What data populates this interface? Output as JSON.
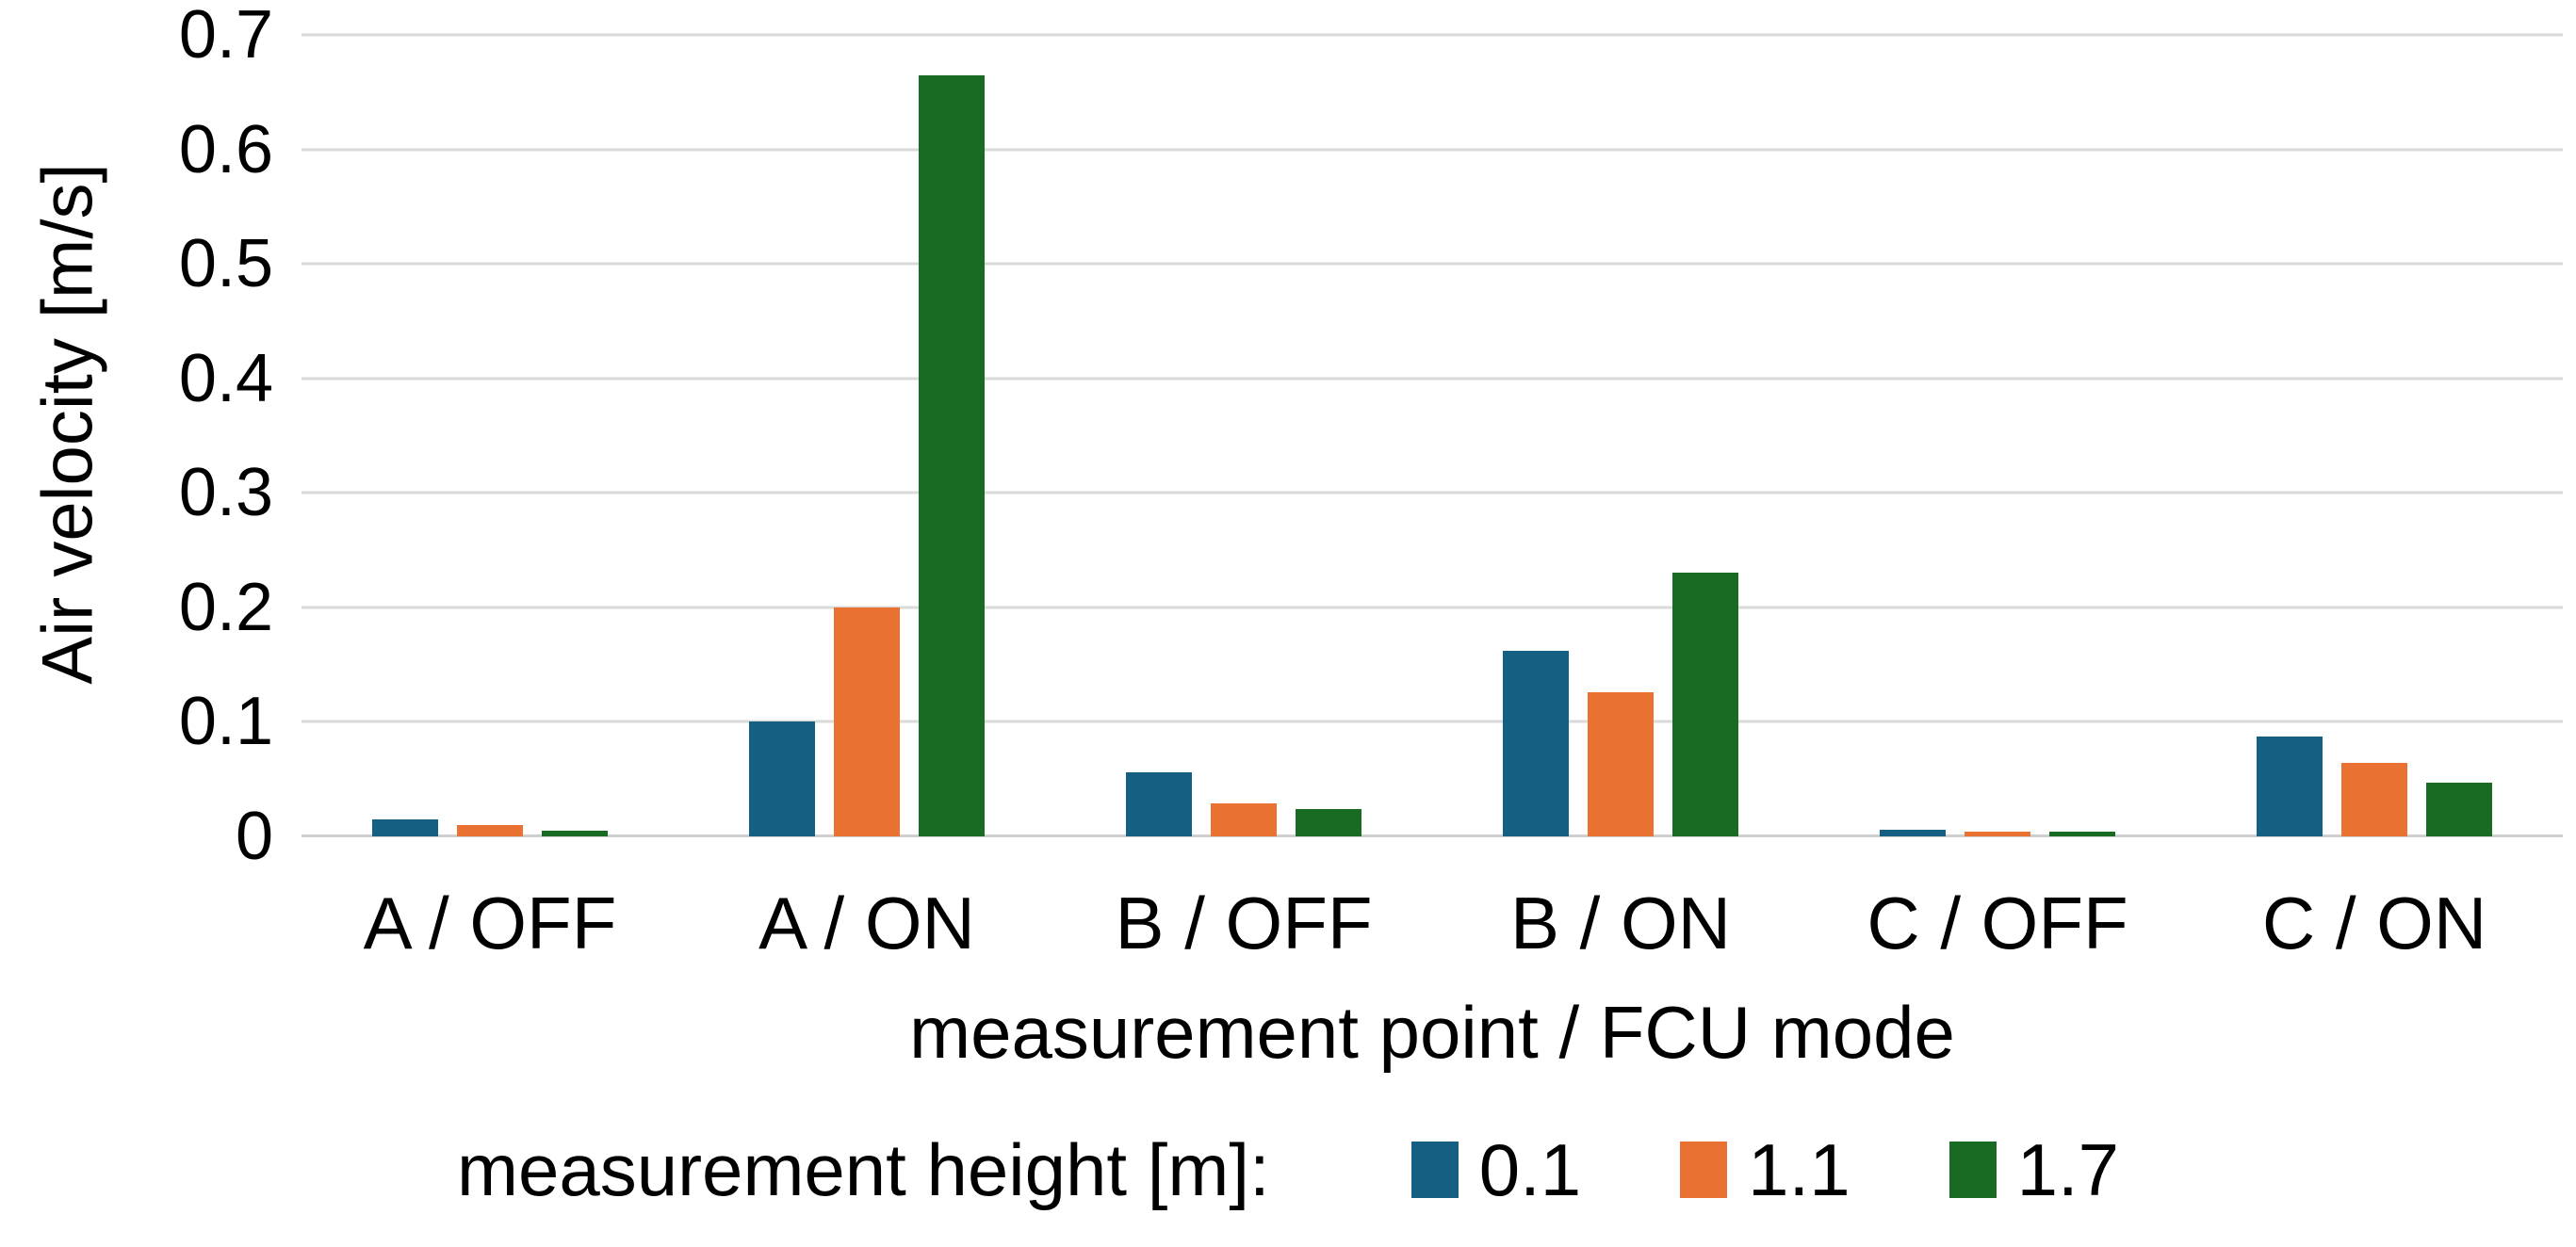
{
  "chart_data": {
    "type": "bar",
    "title": "",
    "xlabel": "measurement point / FCU mode",
    "ylabel": "Air velocity [m/s]",
    "categories": [
      "A / OFF",
      "A / ON",
      "B / OFF",
      "B / ON",
      "C / OFF",
      "C / ON"
    ],
    "series": [
      {
        "name": "0.1",
        "color": "#156082",
        "values": [
          0.015,
          0.1,
          0.056,
          0.162,
          0.006,
          0.087
        ]
      },
      {
        "name": "1.1",
        "color": "#E97132",
        "values": [
          0.01,
          0.2,
          0.029,
          0.126,
          0.004,
          0.064
        ]
      },
      {
        "name": "1.7",
        "color": "#196B24",
        "values": [
          0.005,
          0.665,
          0.024,
          0.23,
          0.004,
          0.047
        ]
      }
    ],
    "ylim": [
      0,
      0.7
    ],
    "yticks": [
      0,
      0.1,
      0.2,
      0.3,
      0.4,
      0.5,
      0.6,
      0.7
    ],
    "ytick_labels": [
      "0",
      "0.1",
      "0.2",
      "0.3",
      "0.4",
      "0.5",
      "0.6",
      "0.7"
    ],
    "grid": true,
    "gridline_color": "#d9d9d9",
    "legend_title": "measurement height [m]:",
    "legend_position": "bottom",
    "text_color": "#000000",
    "background_color": "#ffffff"
  }
}
